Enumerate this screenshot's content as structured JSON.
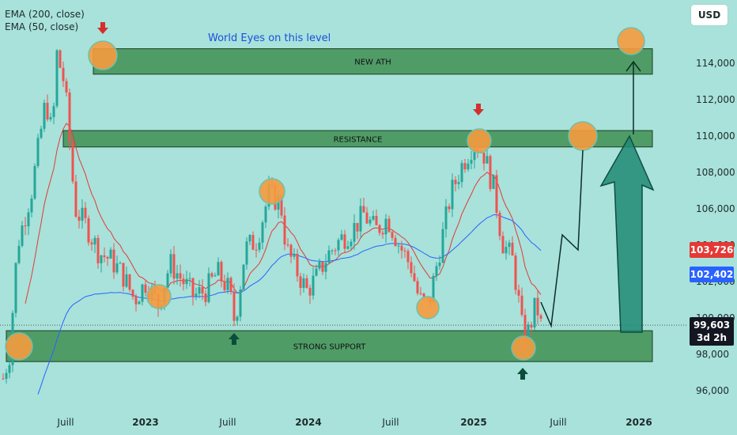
{
  "legend": {
    "ema200": "EMA (200, close)",
    "ema50": "EMA (50, close)"
  },
  "currency": "USD",
  "annotation": "World Eyes on this level",
  "zones": {
    "ath": "NEW ATH",
    "resistance": "RESISTANCE",
    "support": "STRONG SUPPORT"
  },
  "price_labels": {
    "ema50": "103,726",
    "ema200": "102,402",
    "current": "99,603",
    "countdown": "3d 2h"
  },
  "colors": {
    "background": "#a8e2da",
    "zone_fill": "#3f8f52",
    "up_candle": "#26a69a",
    "down_candle": "#ef5350",
    "ema50": "#e53935",
    "ema200": "#2962ff",
    "marker_circle": "#f59b3d",
    "big_arrow": "#1e8a73",
    "small_arrow_up": "#0b4d3a",
    "small_arrow_down": "#d32f2f"
  },
  "chart_data": {
    "type": "candlestick",
    "title": "",
    "ylim": [
      95000,
      116000
    ],
    "y_ticks": [
      96000,
      98000,
      100000,
      102000,
      104000,
      106000,
      108000,
      110000,
      112000,
      114000
    ],
    "y_tick_labels": [
      "96,000",
      "98,000",
      "100,000",
      "102,000",
      "104,000",
      "106,000",
      "108,000",
      "110,000",
      "112,000",
      "114,000"
    ],
    "x_tick_labels": [
      {
        "label": "Juill",
        "bold": false
      },
      {
        "label": "2023",
        "bold": true
      },
      {
        "label": "Juill",
        "bold": false
      },
      {
        "label": "2024",
        "bold": true
      },
      {
        "label": "Juill",
        "bold": false
      },
      {
        "label": "2025",
        "bold": true
      },
      {
        "label": "Juill",
        "bold": false
      },
      {
        "label": "2026",
        "bold": true
      }
    ],
    "zones": [
      {
        "name": "NEW ATH",
        "low": 113400,
        "high": 114800
      },
      {
        "name": "RESISTANCE",
        "low": 109400,
        "high": 110300
      },
      {
        "name": "STRONG SUPPORT",
        "low": 97600,
        "high": 99300
      }
    ],
    "key_points": [
      {
        "date": "2022-03",
        "price": 98400
      },
      {
        "date": "2022-10",
        "price": 114000
      },
      {
        "date": "2023-02",
        "price": 101100
      },
      {
        "date": "2023-10",
        "price": 106900
      },
      {
        "date": "2024-10",
        "price": 100600
      },
      {
        "date": "2025-01",
        "price": 109800
      },
      {
        "date": "2025-04",
        "price": 98300
      }
    ],
    "current_price": 99603,
    "ema50_last": 103726,
    "ema200_last": 102402,
    "projection": [
      99600,
      102800,
      102100,
      109700
    ]
  }
}
